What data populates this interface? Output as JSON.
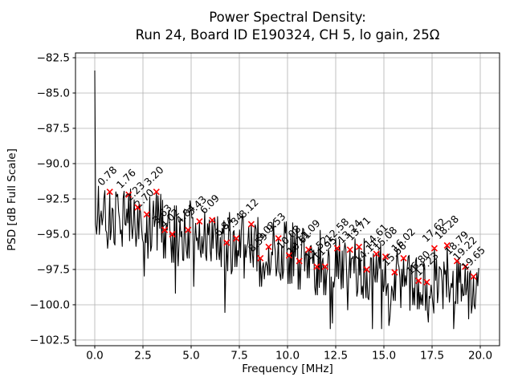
{
  "figure": {
    "title_line1": "Power Spectral Density:",
    "title_line2": "Run 24, Board ID E190324, CH 5, lo gain, 25Ω",
    "xlabel": "Frequency [MHz]",
    "ylabel": "PSD [dB Full Scale]"
  },
  "chart_data": {
    "type": "line",
    "title": "Power Spectral Density:\nRun 24, Board ID E190324, CH 5, lo gain, 25Ω",
    "xlabel": "Frequency [MHz]",
    "ylabel": "PSD [dB Full Scale]",
    "xlim": [
      -1.0,
      21.0
    ],
    "ylim": [
      -102.9,
      -82.16
    ],
    "xticks": [
      0.0,
      2.5,
      5.0,
      7.5,
      10.0,
      12.5,
      15.0,
      17.5,
      20.0
    ],
    "xtick_labels": [
      "0.0",
      "2.5",
      "5.0",
      "7.5",
      "10.0",
      "12.5",
      "15.0",
      "17.5",
      "20.0"
    ],
    "yticks": [
      -82.5,
      -85.0,
      -87.5,
      -90.0,
      -92.5,
      -95.0,
      -97.5,
      -100.0,
      -102.5
    ],
    "ytick_labels": [
      "−82.5",
      "−85.0",
      "−87.5",
      "−90.0",
      "−92.5",
      "−95.0",
      "−97.5",
      "−100.0",
      "−102.5"
    ],
    "grid": true,
    "legend": null,
    "line_color": "#000000",
    "marker_color": "#ff0000",
    "annotation_color": "#000000",
    "grid_color": "#b0b0b0",
    "dc_spike": {
      "freq": 0.0,
      "psd": -83.4
    },
    "noise_floor": {
      "start_db": -93.3,
      "slope_db_per_mhz": -0.3,
      "spread_db": 4.4
    },
    "deep_dips": [
      [
        12.33,
        -101.3
      ],
      [
        16.35,
        -100.4
      ],
      [
        18.62,
        -101.7
      ]
    ],
    "peaks": [
      {
        "freq": 0.78,
        "psd": -92.0,
        "label": "0.78"
      },
      {
        "freq": 1.76,
        "psd": -92.2,
        "label": "1.76"
      },
      {
        "freq": 2.23,
        "psd": -93.1,
        "label": "2.23"
      },
      {
        "freq": 2.7,
        "psd": -93.6,
        "label": "2.70"
      },
      {
        "freq": 3.2,
        "psd": -92.0,
        "label": "3.20"
      },
      {
        "freq": 3.63,
        "psd": -94.7,
        "label": "3.63"
      },
      {
        "freq": 4.02,
        "psd": -95.0,
        "label": "4.02"
      },
      {
        "freq": 4.84,
        "psd": -94.7,
        "label": "4.84"
      },
      {
        "freq": 5.43,
        "psd": -94.1,
        "label": "5.43"
      },
      {
        "freq": 6.09,
        "psd": -94.0,
        "label": "6.09"
      },
      {
        "freq": 6.84,
        "psd": -95.6,
        "label": "6.84"
      },
      {
        "freq": 7.34,
        "psd": -95.3,
        "label": "7.34"
      },
      {
        "freq": 8.12,
        "psd": -94.3,
        "label": "8.12"
      },
      {
        "freq": 8.59,
        "psd": -96.7,
        "label": "8.59"
      },
      {
        "freq": 9.02,
        "psd": -95.9,
        "label": "9.02"
      },
      {
        "freq": 9.53,
        "psd": -95.3,
        "label": "9.53"
      },
      {
        "freq": 10.08,
        "psd": -96.5,
        "label": "10.08"
      },
      {
        "freq": 10.61,
        "psd": -96.9,
        "label": "10.61"
      },
      {
        "freq": 11.09,
        "psd": -96.1,
        "label": "11.09"
      },
      {
        "freq": 11.52,
        "psd": -97.3,
        "label": "11.52"
      },
      {
        "freq": 11.95,
        "psd": -97.3,
        "label": "11.95"
      },
      {
        "freq": 12.58,
        "psd": -96.0,
        "label": "12.58"
      },
      {
        "freq": 13.24,
        "psd": -96.1,
        "label": "13.24"
      },
      {
        "freq": 13.71,
        "psd": -95.9,
        "label": "13.71"
      },
      {
        "freq": 14.11,
        "psd": -97.5,
        "label": "14.11"
      },
      {
        "freq": 14.61,
        "psd": -96.4,
        "label": "14.61"
      },
      {
        "freq": 15.08,
        "psd": -96.6,
        "label": "15.08"
      },
      {
        "freq": 15.56,
        "psd": -97.7,
        "label": "15.56"
      },
      {
        "freq": 16.02,
        "psd": -96.7,
        "label": "16.02"
      },
      {
        "freq": 16.8,
        "psd": -98.3,
        "label": "16.80"
      },
      {
        "freq": 17.23,
        "psd": -98.4,
        "label": "17.23"
      },
      {
        "freq": 17.62,
        "psd": -96.0,
        "label": "17.62"
      },
      {
        "freq": 18.28,
        "psd": -95.8,
        "label": "18.28"
      },
      {
        "freq": 18.79,
        "psd": -96.9,
        "label": "18.79"
      },
      {
        "freq": 19.22,
        "psd": -97.3,
        "label": "19.22"
      },
      {
        "freq": 19.65,
        "psd": -98.0,
        "label": "19.65"
      }
    ]
  }
}
